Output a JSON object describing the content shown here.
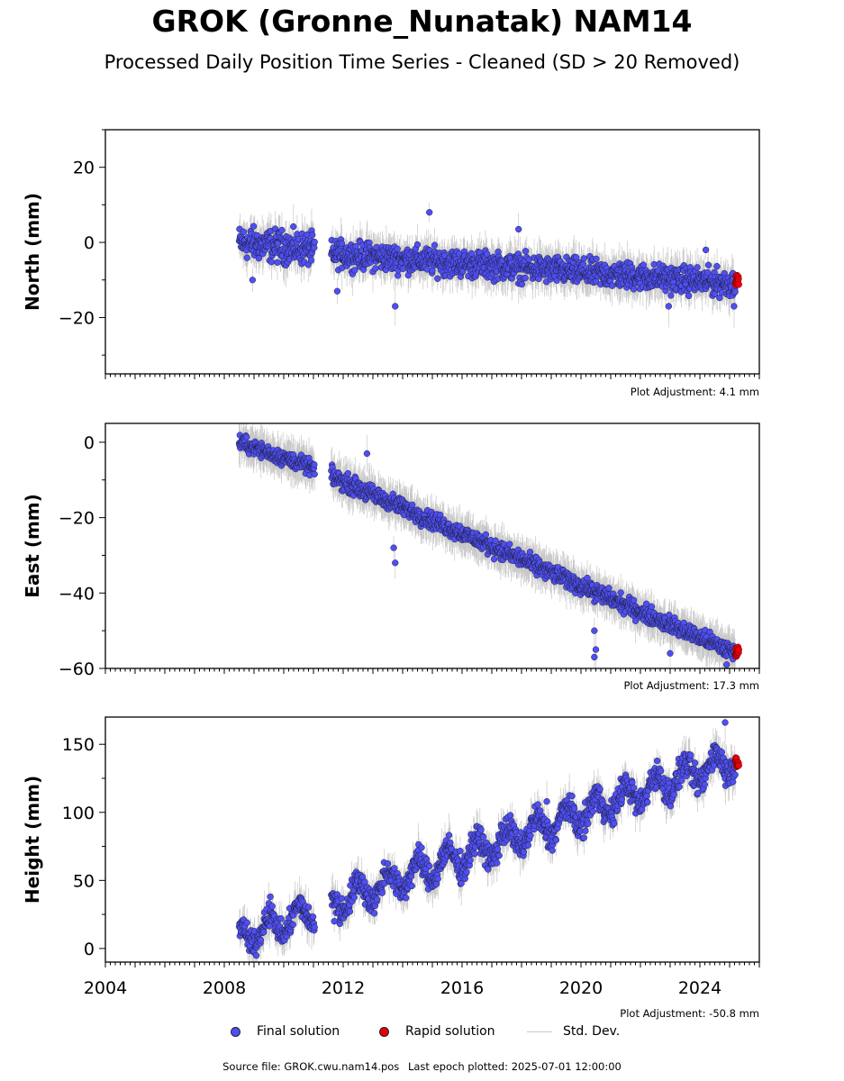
{
  "title": "GROK (Gronne_Nunatak) NAM14",
  "subtitle": "Processed Daily Position Time Series - Cleaned (SD > 20 Removed)",
  "legend": {
    "final": "Final solution",
    "rapid": "Rapid solution",
    "std": "Std. Dev."
  },
  "source": {
    "file": "Source file: GROK.cwu.nam14.pos",
    "last_epoch": "Last epoch plotted: 2025-07-01 12:00:00"
  },
  "colors": {
    "final": "#4f4ff2",
    "rapid": "#e8000b",
    "std_dev": "#9a9a9a",
    "edge": "#1e1e3c"
  },
  "chart_data": [
    {
      "type": "scatter",
      "ylabel": "North (mm)",
      "ylim": [
        -35,
        30
      ],
      "yticks": [
        -20,
        0,
        20
      ],
      "xlim": [
        2004,
        2026
      ],
      "x_tick_labels_shown": false,
      "adjustment": "Plot Adjustment: 4.1 mm",
      "segments": [
        {
          "x0": 2008.5,
          "x1": 2011.05,
          "y0": 0,
          "y1": -2,
          "noise": 3.0
        },
        {
          "x0": 2011.6,
          "x1": 2025.2,
          "y0": -3,
          "y1": -11,
          "noise": 2.5
        }
      ],
      "outliers": [
        [
          2008.95,
          -10
        ],
        [
          2011.8,
          -13
        ],
        [
          2013.75,
          -17
        ],
        [
          2014.9,
          8
        ],
        [
          2017.9,
          3.5
        ],
        [
          2022.95,
          -17
        ],
        [
          2024.2,
          -2
        ],
        [
          2025.15,
          -17
        ]
      ],
      "rapid": {
        "x0": 2025.2,
        "x1": 2025.5,
        "y": -10,
        "noise": 1.2,
        "n": 14
      }
    },
    {
      "type": "scatter",
      "ylabel": "East (mm)",
      "ylim": [
        -60,
        5
      ],
      "yticks": [
        -60,
        -40,
        -20,
        0
      ],
      "xlim": [
        2004,
        2026
      ],
      "x_tick_labels_shown": false,
      "adjustment": "Plot Adjustment: 17.3 mm",
      "segments": [
        {
          "x0": 2008.5,
          "x1": 2011.05,
          "y0": 0,
          "y1": -7,
          "noise": 1.4
        },
        {
          "x0": 2011.6,
          "x1": 2025.2,
          "y0": -9,
          "y1": -56,
          "noise": 1.6
        }
      ],
      "outliers": [
        [
          2013.75,
          -32
        ],
        [
          2013.7,
          -28
        ],
        [
          2020.45,
          -50
        ],
        [
          2020.45,
          -57
        ],
        [
          2020.5,
          -55
        ],
        [
          2023.0,
          -56
        ],
        [
          2024.9,
          -59
        ],
        [
          2012.8,
          -3
        ]
      ],
      "rapid": {
        "x0": 2025.2,
        "x1": 2025.5,
        "y": -55.5,
        "noise": 0.8,
        "n": 14
      }
    },
    {
      "type": "scatter",
      "ylabel": "Height (mm)",
      "ylim": [
        -10,
        170
      ],
      "yticks": [
        0,
        50,
        100,
        150
      ],
      "xlim": [
        2004,
        2026
      ],
      "xticks": [
        2004,
        2008,
        2012,
        2016,
        2020,
        2024
      ],
      "x_tick_labels_shown": true,
      "adjustment": "Plot Adjustment: -50.8 mm",
      "seasonal_amplitude": 9,
      "segments": [
        {
          "x0": 2008.5,
          "x1": 2011.05,
          "y0": 8,
          "y1": 27,
          "noise": 6
        },
        {
          "x0": 2011.6,
          "x1": 2025.2,
          "y0": 33,
          "y1": 140,
          "noise": 7
        }
      ],
      "outliers": [
        [
          2011.7,
          20
        ],
        [
          2018.85,
          108
        ],
        [
          2024.85,
          166
        ],
        [
          2009.55,
          38
        ]
      ],
      "rapid": {
        "x0": 2025.2,
        "x1": 2025.5,
        "y": 136,
        "noise": 3,
        "n": 12
      }
    }
  ]
}
